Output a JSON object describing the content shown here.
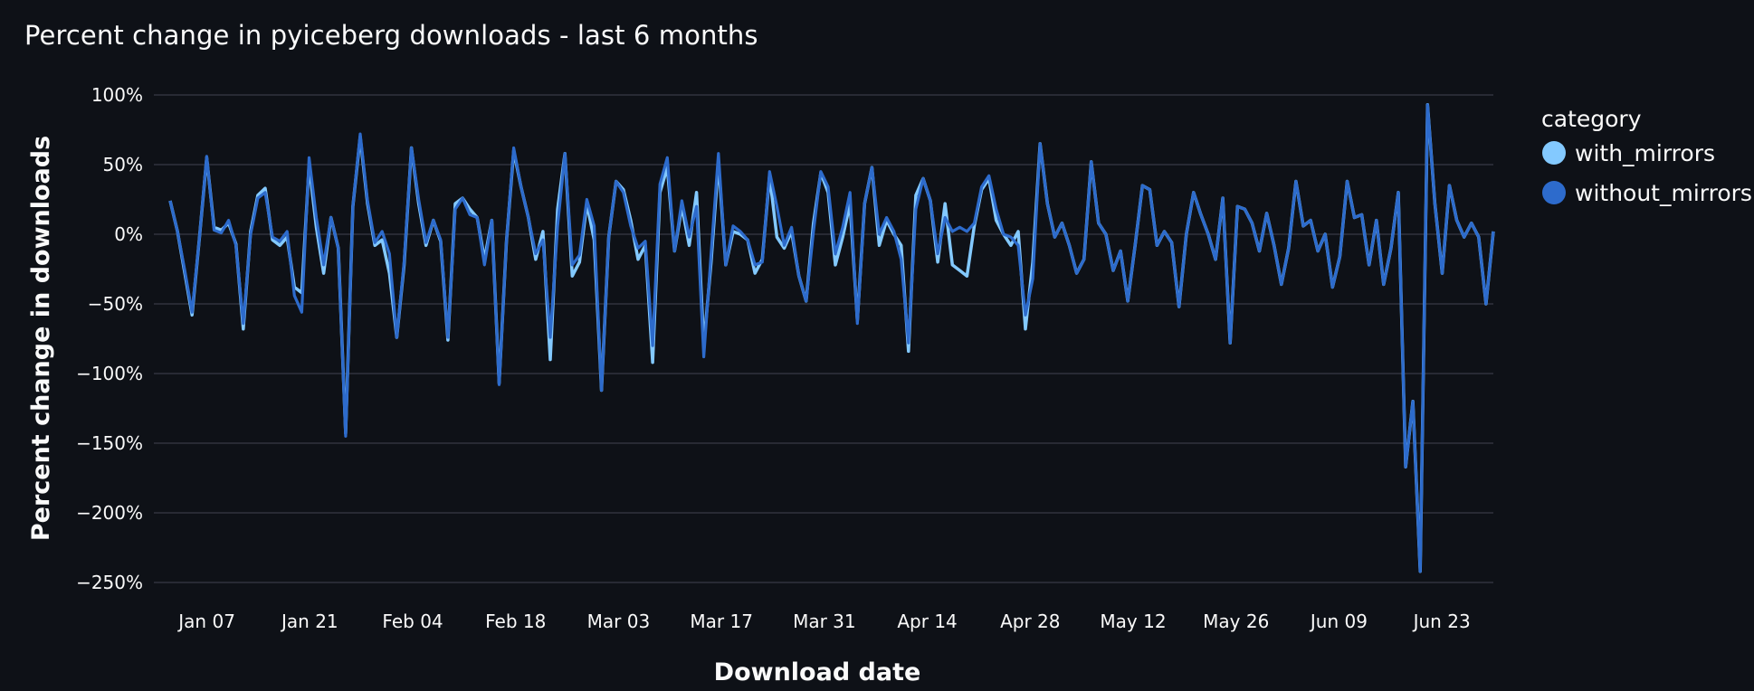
{
  "chart_data": {
    "type": "line",
    "title": "Percent change in pyiceberg downloads - last 6 months",
    "xlabel": "Download date",
    "ylabel": "Percent change in downloads",
    "x_tick_labels": [
      "Jan 07",
      "Jan 21",
      "Feb 04",
      "Feb 18",
      "Mar 03",
      "Mar 17",
      "Mar 31",
      "Apr 14",
      "Apr 28",
      "May 12",
      "May 26",
      "Jun 09",
      "Jun 23"
    ],
    "y_tick_labels": [
      "100%",
      "50%",
      "0%",
      "−50%",
      "−100%",
      "−150%",
      "−200%",
      "−250%"
    ],
    "ylim": [
      -250,
      100
    ],
    "grid": true,
    "legend": {
      "title": "category",
      "placement": "right"
    },
    "colors": {
      "with_mirrors": "#83c9ff",
      "without_mirrors": "#2d6bcc",
      "background": "#0e1117",
      "grid": "#31333f"
    },
    "x_start": "2024-01-02",
    "x_end": "2024-06-30",
    "series": [
      {
        "name": "with_mirrors",
        "values": [
          24,
          2,
          -28,
          -58,
          -3,
          55,
          5,
          3,
          8,
          -7,
          -68,
          2,
          28,
          33,
          -4,
          -8,
          -2,
          -38,
          -42,
          50,
          5,
          -28,
          12,
          -10,
          -143,
          20,
          70,
          22,
          -8,
          -4,
          -28,
          -74,
          -22,
          62,
          22,
          -8,
          10,
          -5,
          -76,
          22,
          26,
          18,
          12,
          -18,
          10,
          -107,
          -5,
          60,
          34,
          12,
          -18,
          2,
          -90,
          18,
          58,
          -30,
          -20,
          22,
          -4,
          -112,
          -2,
          38,
          32,
          10,
          -18,
          -8,
          -92,
          30,
          48,
          -12,
          20,
          -8,
          30,
          -80,
          -20,
          52,
          -22,
          2,
          0,
          -4,
          -28,
          -18,
          42,
          -2,
          -10,
          2,
          -30,
          -48,
          8,
          44,
          30,
          -22,
          -2,
          22,
          -62,
          22,
          48,
          -8,
          10,
          0,
          -8,
          -84,
          28,
          40,
          24,
          -20,
          22,
          -22,
          -26,
          -30,
          6,
          32,
          40,
          10,
          0,
          -8,
          2,
          -68,
          -20,
          65,
          22,
          -2,
          8,
          -8,
          -28,
          -18,
          52,
          8,
          0,
          -26,
          -12,
          -48,
          -8,
          35,
          32,
          -8,
          2,
          -6,
          -52,
          0,
          30,
          14,
          0,
          -18,
          26,
          -78,
          20,
          18,
          8,
          -12,
          15,
          -8,
          -36,
          -10,
          38,
          6,
          10,
          -12,
          0,
          -38,
          -16,
          38,
          12,
          14,
          -22,
          10,
          -36,
          -10,
          30,
          -167,
          -120,
          -242,
          93,
          22,
          -28,
          35,
          10,
          -2,
          8,
          -2,
          -50,
          2
        ]
      },
      {
        "name": "without_mirrors",
        "values": [
          24,
          2,
          -26,
          -56,
          -3,
          56,
          3,
          1,
          10,
          -8,
          -64,
          0,
          26,
          30,
          -2,
          -5,
          2,
          -44,
          -56,
          55,
          12,
          -22,
          12,
          -10,
          -145,
          20,
          72,
          24,
          -6,
          2,
          -14,
          -74,
          -20,
          62,
          25,
          -6,
          10,
          -4,
          -74,
          18,
          26,
          14,
          12,
          -22,
          10,
          -108,
          -5,
          62,
          34,
          12,
          -14,
          -4,
          -74,
          6,
          58,
          -22,
          -15,
          25,
          6,
          -112,
          -2,
          38,
          30,
          6,
          -10,
          -5,
          -80,
          36,
          55,
          -12,
          24,
          -2,
          20,
          -88,
          -14,
          58,
          -22,
          6,
          2,
          -4,
          -22,
          -20,
          45,
          20,
          -8,
          5,
          -30,
          -48,
          2,
          45,
          34,
          -14,
          5,
          30,
          -64,
          22,
          48,
          0,
          12,
          2,
          -18,
          -78,
          18,
          40,
          24,
          -14,
          12,
          2,
          5,
          2,
          8,
          34,
          42,
          18,
          0,
          -2,
          -8,
          -58,
          -32,
          65,
          22,
          -2,
          8,
          -8,
          -28,
          -18,
          52,
          8,
          0,
          -26,
          -12,
          -48,
          -8,
          35,
          32,
          -8,
          2,
          -6,
          -52,
          0,
          30,
          14,
          0,
          -18,
          26,
          -78,
          20,
          18,
          8,
          -12,
          15,
          -8,
          -36,
          -10,
          38,
          6,
          10,
          -12,
          0,
          -38,
          -16,
          38,
          12,
          14,
          -22,
          10,
          -36,
          -10,
          30,
          -167,
          -120,
          -242,
          93,
          22,
          -28,
          35,
          10,
          -2,
          8,
          -2,
          -50,
          2
        ]
      }
    ]
  }
}
